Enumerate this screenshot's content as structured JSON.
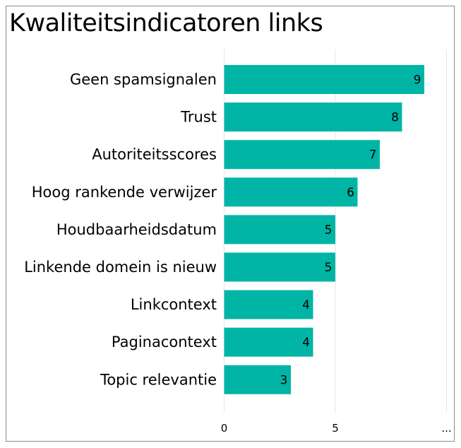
{
  "chart_data": {
    "type": "bar",
    "orientation": "horizontal",
    "title": "Kwaliteitsindicatoren links",
    "categories": [
      "Geen spamsignalen",
      "Trust",
      "Autoriteitsscores",
      "Hoog rankende verwijzer",
      "Houdbaarheidsdatum",
      "Linkende domein is nieuw",
      "Linkcontext",
      "Paginacontext",
      "Topic relevantie"
    ],
    "values": [
      9,
      8,
      7,
      6,
      5,
      5,
      4,
      4,
      3
    ],
    "xlim": [
      0,
      10
    ],
    "x_ticks": [
      "0",
      "5",
      "..."
    ],
    "grid": true,
    "bar_color": "#00b5a5",
    "grid_color": "#e6e6e6"
  }
}
